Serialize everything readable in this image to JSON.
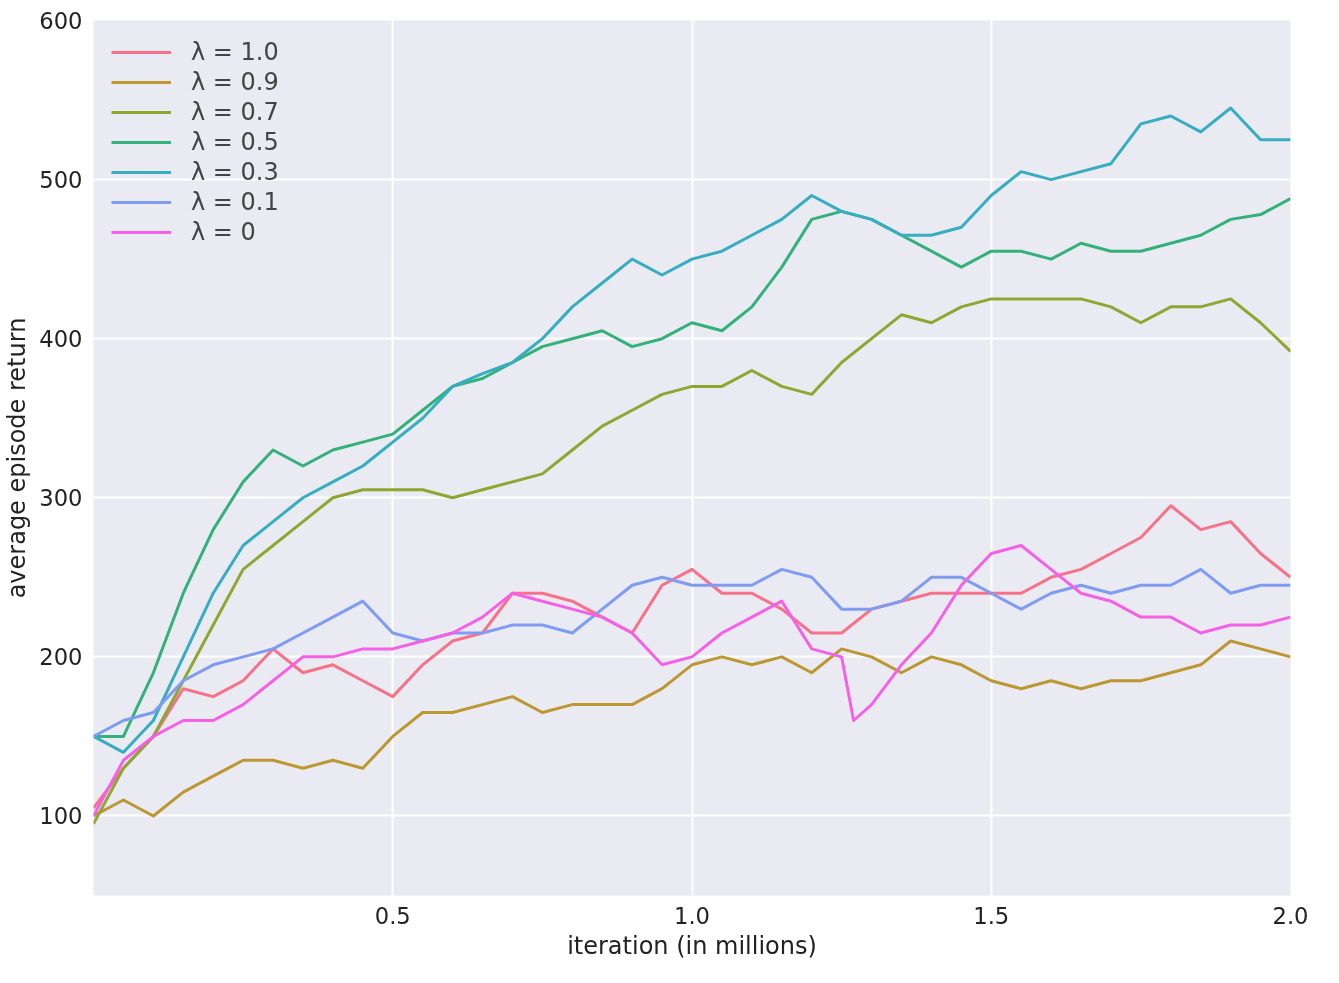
{
  "chart_data": {
    "type": "line",
    "xlabel": "iteration (in millions)",
    "ylabel": "average episode return",
    "x": [
      0.0,
      0.05,
      0.1,
      0.15,
      0.2,
      0.25,
      0.3,
      0.35,
      0.4,
      0.45,
      0.5,
      0.55,
      0.6,
      0.65,
      0.7,
      0.75,
      0.8,
      0.85,
      0.9,
      0.95,
      1.0,
      1.05,
      1.1,
      1.15,
      1.2,
      1.25,
      1.3,
      1.35,
      1.4,
      1.45,
      1.5,
      1.55,
      1.6,
      1.65,
      1.7,
      1.75,
      1.8,
      1.85,
      1.9,
      1.95,
      2.0
    ],
    "series": [
      {
        "name": "λ = 1.0",
        "color": "#f77189",
        "values": [
          105,
          130,
          150,
          180,
          175,
          185,
          205,
          190,
          195,
          185,
          175,
          195,
          210,
          215,
          240,
          240,
          235,
          225,
          215,
          245,
          255,
          240,
          240,
          230,
          215,
          215,
          230,
          235,
          240,
          240,
          240,
          240,
          250,
          255,
          265,
          275,
          295,
          280,
          285,
          265,
          250
        ]
      },
      {
        "name": "λ = 0.9",
        "color": "#bb9832",
        "values": [
          100,
          110,
          100,
          115,
          125,
          135,
          135,
          130,
          135,
          130,
          150,
          165,
          165,
          170,
          175,
          165,
          170,
          170,
          170,
          180,
          195,
          200,
          195,
          200,
          190,
          205,
          200,
          190,
          200,
          195,
          185,
          180,
          185,
          180,
          185,
          185,
          190,
          195,
          210,
          205,
          200
        ]
      },
      {
        "name": "λ = 0.7",
        "color": "#8fa731",
        "values": [
          95,
          130,
          150,
          185,
          220,
          255,
          270,
          285,
          300,
          305,
          305,
          305,
          300,
          305,
          310,
          315,
          330,
          345,
          355,
          365,
          370,
          370,
          380,
          370,
          365,
          385,
          400,
          415,
          410,
          420,
          425,
          425,
          425,
          425,
          420,
          410,
          420,
          420,
          425,
          410,
          392
        ]
      },
      {
        "name": "λ = 0.5",
        "color": "#32b17a",
        "values": [
          150,
          150,
          190,
          240,
          280,
          310,
          330,
          320,
          330,
          335,
          340,
          355,
          370,
          375,
          385,
          395,
          400,
          405,
          395,
          400,
          410,
          405,
          420,
          445,
          475,
          480,
          475,
          465,
          455,
          445,
          455,
          455,
          450,
          460,
          455,
          455,
          460,
          465,
          475,
          478,
          488
        ]
      },
      {
        "name": "λ = 0.3",
        "color": "#36adc0",
        "values": [
          150,
          140,
          160,
          200,
          240,
          270,
          285,
          300,
          310,
          320,
          335,
          350,
          370,
          378,
          385,
          400,
          420,
          435,
          450,
          440,
          450,
          455,
          465,
          475,
          490,
          480,
          475,
          465,
          465,
          470,
          490,
          505,
          500,
          505,
          510,
          535,
          540,
          530,
          545,
          525,
          525
        ]
      },
      {
        "name": "λ = 0.1",
        "color": "#7f9cf2",
        "values": [
          150,
          160,
          165,
          185,
          195,
          200,
          205,
          215,
          225,
          235,
          215,
          210,
          215,
          215,
          220,
          220,
          215,
          230,
          245,
          250,
          245,
          245,
          245,
          255,
          250,
          230,
          230,
          235,
          250,
          250,
          240,
          230,
          240,
          245,
          240,
          245,
          245,
          255,
          240,
          245,
          245
        ]
      },
      {
        "name": "λ = 0",
        "color": "#f461e6",
        "x": [
          0.0,
          0.05,
          0.1,
          0.15,
          0.2,
          0.25,
          0.3,
          0.35,
          0.4,
          0.45,
          0.5,
          0.55,
          0.6,
          0.65,
          0.7,
          0.75,
          0.8,
          0.85,
          0.9,
          0.95,
          1.0,
          1.05,
          1.1,
          1.15,
          1.2,
          1.25,
          1.27,
          1.3,
          1.35,
          1.4,
          1.45,
          1.5,
          1.55,
          1.6,
          1.65,
          1.7,
          1.75,
          1.8,
          1.85,
          1.9,
          1.95,
          2.0
        ],
        "values": [
          100,
          135,
          150,
          160,
          160,
          170,
          185,
          200,
          200,
          205,
          205,
          210,
          215,
          225,
          240,
          235,
          230,
          225,
          215,
          195,
          200,
          215,
          225,
          235,
          205,
          200,
          160,
          170,
          195,
          215,
          245,
          265,
          270,
          255,
          240,
          235,
          225,
          225,
          215,
          220,
          220,
          225
        ]
      }
    ],
    "xlim": [
      0,
      2.0
    ],
    "ylim": [
      50,
      600
    ],
    "xticks": [
      {
        "value": 0.5,
        "label": "0.5"
      },
      {
        "value": 1.0,
        "label": "1.0"
      },
      {
        "value": 1.5,
        "label": "1.5"
      },
      {
        "value": 2.0,
        "label": "2.0"
      }
    ],
    "yticks": [
      100,
      200,
      300,
      400,
      500,
      600
    ],
    "grid": true,
    "legend": "top left",
    "line_style": "solid"
  }
}
